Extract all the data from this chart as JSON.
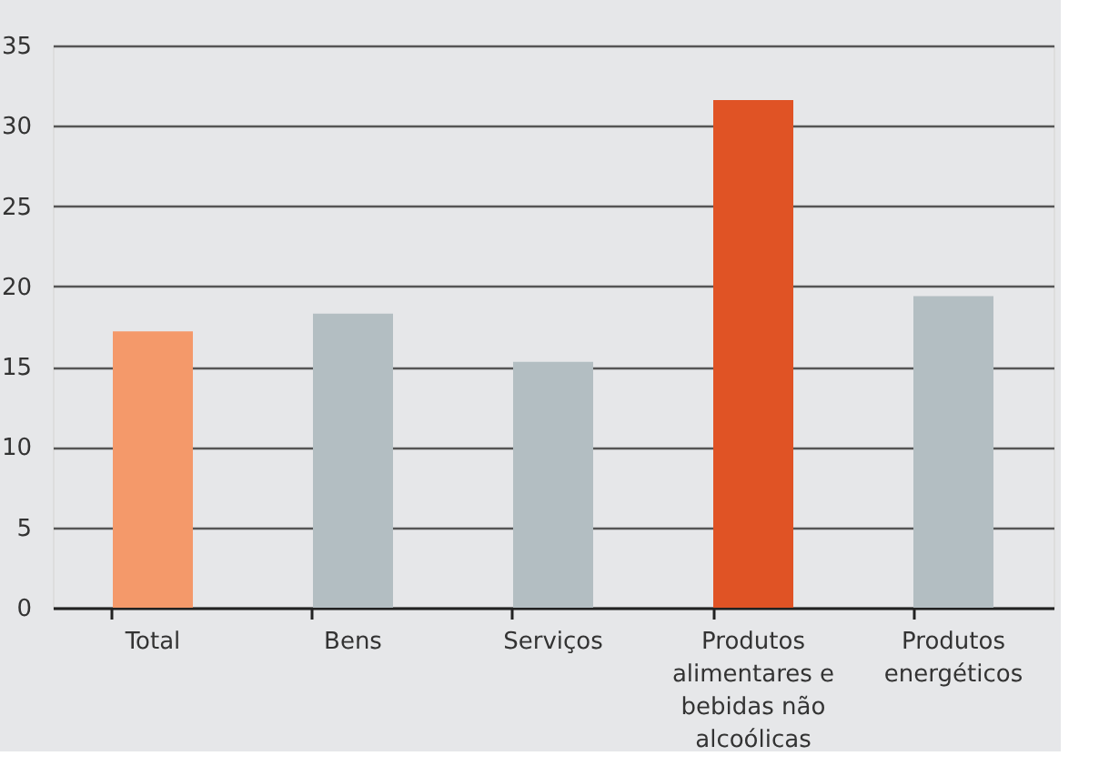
{
  "chart_data": {
    "type": "bar",
    "categories": [
      "Total",
      "Bens",
      "Serviços",
      "Produtos alimentares e bebidas não alcoólicas",
      "Produtos energéticos"
    ],
    "values": [
      17.2,
      18.3,
      15.3,
      31.6,
      19.4
    ],
    "colors": [
      "#f4996a",
      "#b3bec2",
      "#b3bec2",
      "#e05325",
      "#b3bec2"
    ],
    "ylim": [
      0,
      35
    ],
    "yticks": [
      0,
      5,
      10,
      15,
      20,
      25,
      30,
      35
    ],
    "grid": "y"
  }
}
